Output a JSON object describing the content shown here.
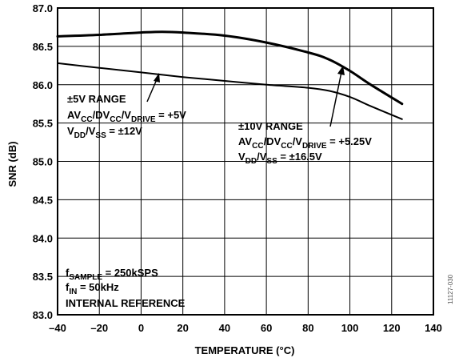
{
  "chart_data": {
    "type": "line",
    "xlabel": "TEMPERATURE (°C)",
    "ylabel": "SNR (dB)",
    "xlim": [
      -40,
      140
    ],
    "ylim": [
      83.0,
      87.0
    ],
    "x_ticks": [
      "–40",
      "–20",
      "0",
      "20",
      "40",
      "60",
      "80",
      "100",
      "120",
      "140"
    ],
    "y_ticks": [
      "83.0",
      "83.5",
      "84.0",
      "84.5",
      "85.0",
      "85.5",
      "86.0",
      "86.5",
      "87.0"
    ],
    "grid": true,
    "series": [
      {
        "name": "±10V RANGE",
        "x": [
          -40,
          -20,
          0,
          10,
          20,
          40,
          60,
          80,
          90,
          100,
          110,
          125
        ],
        "y": [
          86.63,
          86.65,
          86.68,
          86.69,
          86.68,
          86.64,
          86.55,
          86.42,
          86.33,
          86.18,
          86.0,
          85.75
        ]
      },
      {
        "name": "±5V RANGE",
        "x": [
          -40,
          -20,
          0,
          20,
          40,
          60,
          80,
          90,
          100,
          110,
          125
        ],
        "y": [
          86.28,
          86.22,
          86.16,
          86.1,
          86.05,
          86.0,
          85.96,
          85.92,
          85.84,
          85.72,
          85.55
        ]
      }
    ],
    "annotations": {
      "range5": {
        "title": "±5V RANGE",
        "l1_a": "AV",
        "l1_b": "CC",
        "l1_c": "/DV",
        "l1_d": "CC",
        "l1_e": "/V",
        "l1_f": "DRIVE",
        "l1_g": " = +5V",
        "l2_a": "V",
        "l2_b": "DD",
        "l2_c": "/V",
        "l2_d": "SS",
        "l2_e": " = ±12V"
      },
      "range10": {
        "title": "±10V RANGE",
        "l1_a": "AV",
        "l1_b": "CC",
        "l1_c": "/DV",
        "l1_d": "CC",
        "l1_e": "/V",
        "l1_f": "DRIVE",
        "l1_g": " = +5.25V",
        "l2_a": "V",
        "l2_b": "DD",
        "l2_c": "/V",
        "l2_d": "SS",
        "l2_e": " = ±16.5V"
      },
      "conditions": {
        "l1_a": "f",
        "l1_b": "SAMPLE",
        "l1_c": " = 250kSPS",
        "l2_a": "f",
        "l2_b": "IN",
        "l2_c": " = 50kHz",
        "l3": "INTERNAL REFERENCE"
      }
    },
    "figure_id": "11127-030"
  }
}
